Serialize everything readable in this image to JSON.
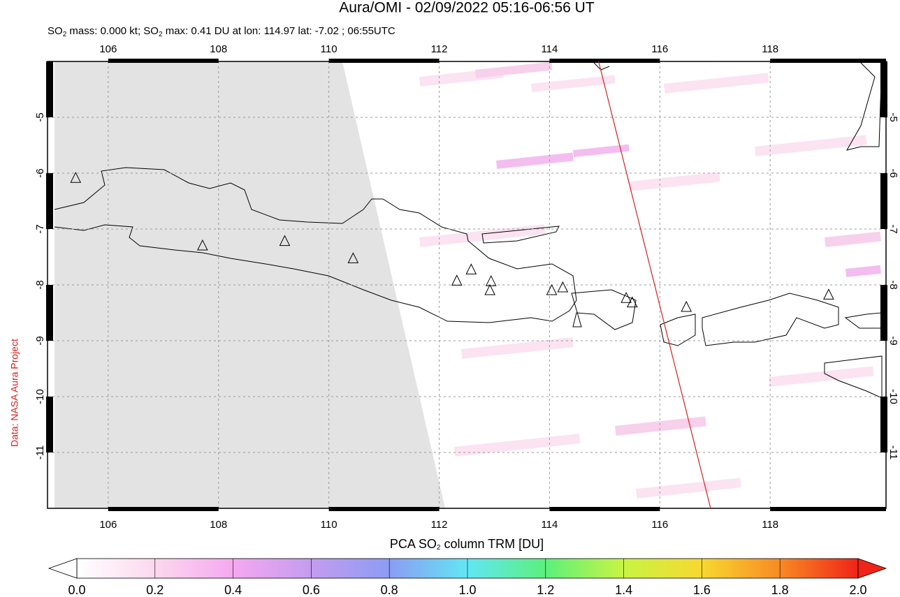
{
  "chart_data": {
    "type": "map",
    "title": "Aura/OMI - 02/09/2022 05:16-06:56 UT",
    "subtitle": [
      "SO",
      "2",
      " mass: 0.000 kt; SO",
      "2",
      " max: 0.41 DU at lon: 114.97 lat: -7.02 ; 06:55UTC"
    ],
    "credit": "Data: NASA Aura Project",
    "xlim": [
      104.9,
      120.1
    ],
    "ylim": [
      -12,
      -4
    ],
    "xticks": [
      106,
      108,
      110,
      112,
      114,
      116,
      118
    ],
    "yticks": [
      -5,
      -6,
      -7,
      -8,
      -9,
      -10,
      -11
    ],
    "grid": true,
    "volcanoes": {
      "lon": [
        105.41,
        107.71,
        109.2,
        110.44,
        112.32,
        112.58,
        112.94,
        112.92,
        114.04,
        114.24,
        115.39,
        115.5,
        116.48,
        119.06
      ],
      "lat": [
        -6.09,
        -7.3,
        -7.22,
        -7.53,
        -7.93,
        -7.73,
        -7.94,
        -8.1,
        -8.1,
        -8.05,
        -8.24,
        -8.32,
        -8.4,
        -8.18
      ]
    },
    "track": {
      "color": "#d62020",
      "lon": [
        114.89,
        116.92
      ],
      "lat": [
        -4,
        -12
      ]
    },
    "colorbar": {
      "label": [
        "PCA SO",
        "2",
        " column TRM [DU]"
      ],
      "lim": [
        0,
        2
      ],
      "ticks": [
        {
          "value": 0,
          "label": "0.0"
        },
        0.2,
        0.4,
        0.6,
        0.8,
        {
          "value": 1,
          "label": "1.0"
        },
        1.2,
        1.4,
        1.6,
        1.8,
        {
          "value": 2,
          "label": "2.0"
        }
      ],
      "colors": [
        "#ffffff",
        "#fcd8ee",
        "#f5a8f0",
        "#c49cf0",
        "#8c9cf4",
        "#62e6f4",
        "#5cf07c",
        "#c8f444",
        "#f8d830",
        "#f88a24",
        "#f02418"
      ]
    }
  }
}
